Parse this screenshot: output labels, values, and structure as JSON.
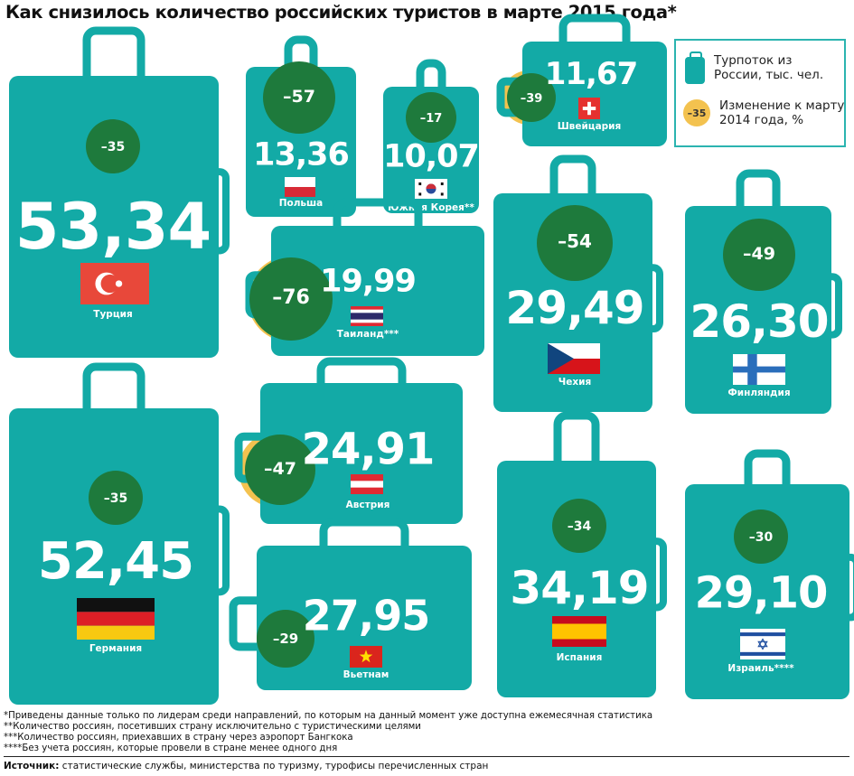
{
  "title": "Как снизилось количество российских туристов в марте 2015 года*",
  "legend": {
    "suitcase_label": "Турпоток из России, тыс. чел.",
    "circle_value": "–35",
    "circle_label": "Изменение к марту 2014 года, %"
  },
  "colors": {
    "suitcase": "#13aaa6",
    "change": "#1e7a3c",
    "legend_circle": "#f3c24f",
    "legend_border": "#2bb4b0"
  },
  "notes": [
    "*Приведены данные только по лидерам среди направлений, по которым на данный момент уже доступна ежемесячная статистика",
    "**Количество россиян, посетивших страну исключительно с туристическими целями",
    "***Количество россиян, приехавших в страну через аэропорт Бангкока",
    "****Без учета россиян, которые провели в стране менее одного дня"
  ],
  "source_label": "Источник:",
  "source_text": " статистические службы, министерства по туризму, турофисы перечисленных стран",
  "chart_data": {
    "type": "table",
    "columns": [
      "country",
      "tourists_thousands",
      "change_pct"
    ],
    "rows": [
      {
        "country": "Турция",
        "value": "53,34",
        "change": "–35",
        "flag": "turkey"
      },
      {
        "country": "Польша",
        "value": "13,36",
        "change": "–57",
        "flag": "poland"
      },
      {
        "country": "Южная Корея**",
        "value": "10,07",
        "change": "–17",
        "flag": "korea"
      },
      {
        "country": "Швейцария",
        "value": "11,67",
        "change": "–39",
        "flag": "switzerland"
      },
      {
        "country": "Таиланд***",
        "value": "19,99",
        "change": "–76",
        "flag": "thailand"
      },
      {
        "country": "Чехия",
        "value": "29,49",
        "change": "–54",
        "flag": "czech"
      },
      {
        "country": "Финляндия",
        "value": "26,30",
        "change": "–49",
        "flag": "finland"
      },
      {
        "country": "Германия",
        "value": "52,45",
        "change": "–35",
        "flag": "germany"
      },
      {
        "country": "Австрия",
        "value": "24,91",
        "change": "–47",
        "flag": "austria"
      },
      {
        "country": "Вьетнам",
        "value": "27,95",
        "change": "–29",
        "flag": "vietnam"
      },
      {
        "country": "Испания",
        "value": "34,19",
        "change": "–34",
        "flag": "spain"
      },
      {
        "country": "Израиль****",
        "value": "29,10",
        "change": "–30",
        "flag": "israel"
      }
    ]
  }
}
